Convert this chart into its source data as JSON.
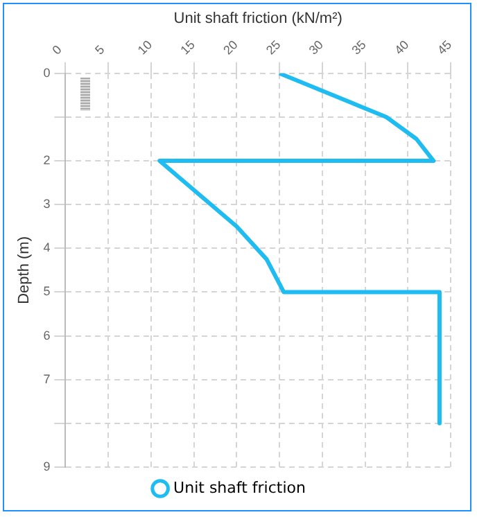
{
  "chart_data": {
    "type": "line",
    "xlabel": "Unit shaft friction (kN/m²)",
    "ylabel": "Depth (m)",
    "x": [
      25,
      37.5,
      41,
      43,
      11,
      20,
      23.5,
      25.5,
      43.7,
      43.7
    ],
    "series": [
      {
        "name": "Unit shaft friction",
        "color": "#1ebcf0",
        "values": [
          0,
          1,
          1.5,
          2,
          2,
          3.5,
          4.25,
          5,
          5,
          8
        ]
      }
    ],
    "xlim": [
      0,
      45
    ],
    "xticks": [
      0,
      5,
      10,
      15,
      20,
      25,
      30,
      35,
      40,
      45
    ],
    "ylim": [
      9,
      0
    ],
    "yticks": [
      0,
      {
        "value": 1,
        "label": null
      },
      2,
      3,
      4,
      5,
      6,
      7,
      {
        "value": 8,
        "label": null
      },
      9
    ],
    "grid": true,
    "legend": "bottom",
    "marker": "none",
    "line_style": "solid"
  }
}
